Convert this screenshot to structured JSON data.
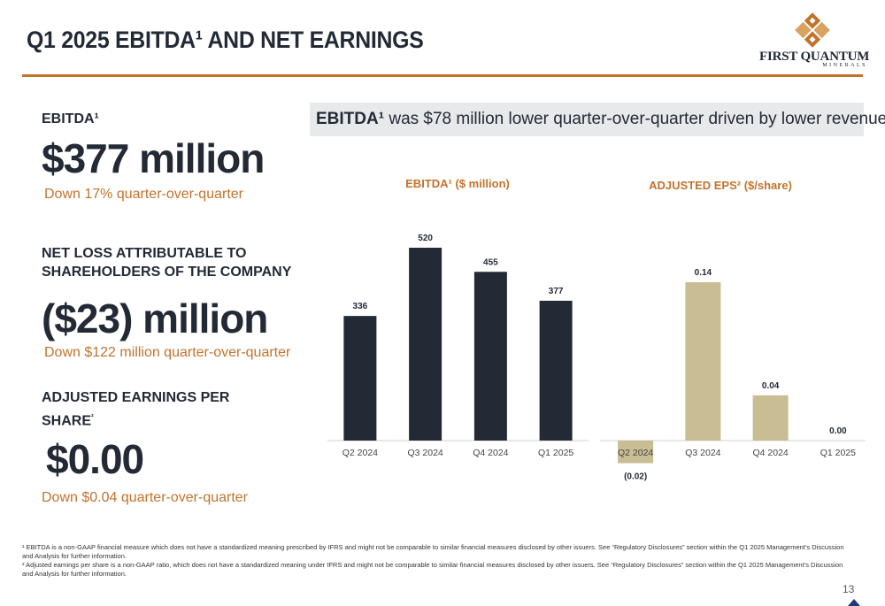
{
  "page": {
    "title": "Q1 2025 EBITDA¹ AND NET EARNINGS",
    "logo_name": "FIRST QUANTUM",
    "logo_sub": "MINERALS",
    "page_number": "13"
  },
  "metrics": {
    "ebitda_label": "EBITDA¹",
    "ebitda_value": "$377 million",
    "ebitda_change": "Down 17% quarter-over-quarter",
    "netloss_label_line1": "NET LOSS ATTRIBUTABLE TO",
    "netloss_label_line2": "SHAREHOLDERS OF THE COMPANY",
    "netloss_value": "($23) million",
    "netloss_change": "Down $122 million quarter-over-quarter",
    "eps_label_line1": "ADJUSTED EARNINGS PER",
    "eps_label_line2": "SHARE",
    "eps_label_sup": "²",
    "eps_value": "$0.00",
    "eps_change": "Down $0.04 quarter-over-quarter"
  },
  "banner": {
    "bold": "EBITDA¹",
    "text": " was $78 million lower quarter-over-quarter driven by lower revenue"
  },
  "chart_data": [
    {
      "type": "bar",
      "title": "EBITDA¹ ($ million)",
      "categories": [
        "Q2 2024",
        "Q3 2024",
        "Q4 2024",
        "Q1 2025"
      ],
      "values": [
        336,
        520,
        455,
        377
      ],
      "data_labels": [
        "336",
        "520",
        "455",
        "377"
      ],
      "ylim": [
        0,
        560
      ],
      "color": "#232a36",
      "grid": false
    },
    {
      "type": "bar",
      "title": "ADJUSTED EPS² ($/share)",
      "categories": [
        "Q2 2024",
        "Q3 2024",
        "Q4 2024",
        "Q1 2025"
      ],
      "values": [
        -0.02,
        0.14,
        0.04,
        0.0
      ],
      "data_labels": [
        "(0.02)",
        "0.14",
        "0.04",
        "0.00"
      ],
      "ylim": [
        -0.02,
        0.16
      ],
      "color": "#c8bd93",
      "grid": false
    }
  ],
  "footnotes": {
    "note1": "¹ EBITDA is a non-GAAP financial measure which does not have a standardized meaning prescribed by IFRS and might not be comparable to similar financial measures disclosed by other issuers. See “Regulatory Disclosures” section within the Q1 2025 Management’s Discussion and Analysis for further information.",
    "note2": "² Adjusted earnings per share is a non-GAAP ratio, which does not have a standardized meaning under IFRS and might not be comparable to similar financial measures disclosed by other issuers. See “Regulatory Disclosures” section within the Q1 2025 Management’s Discussion and Analysis for further information."
  }
}
